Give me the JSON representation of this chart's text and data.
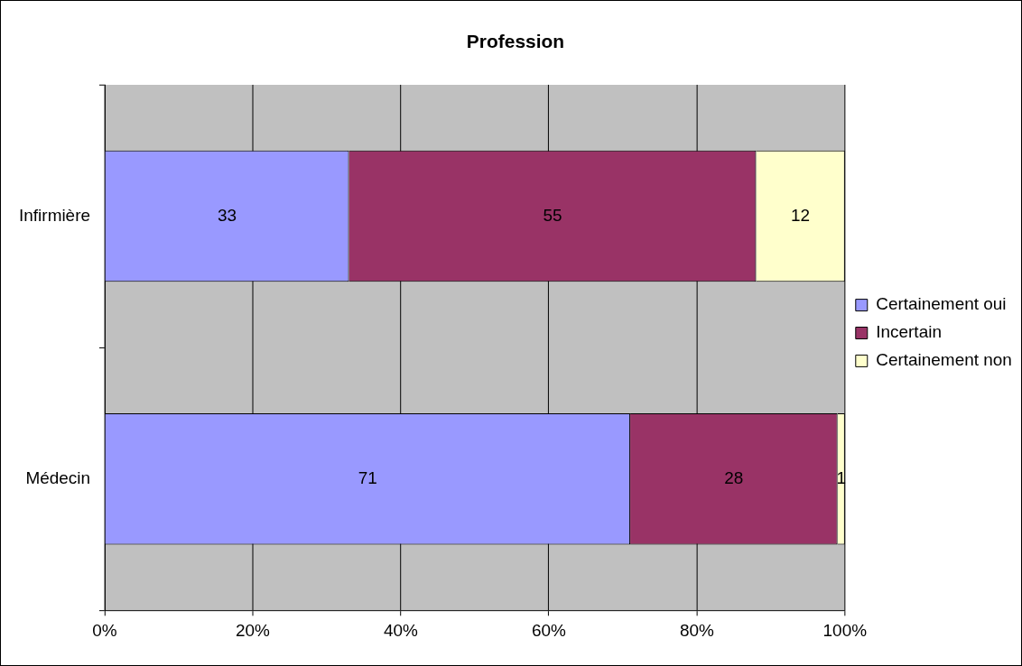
{
  "chart_data": {
    "type": "bar",
    "title": "Profession",
    "orientation": "horizontal",
    "stacked": true,
    "categories": [
      "Infirmière",
      "Médecin"
    ],
    "series": [
      {
        "name": "Certainement oui",
        "color": "#9999ff",
        "values": [
          33,
          71
        ]
      },
      {
        "name": "Incertain",
        "color": "#993366",
        "values": [
          55,
          28
        ]
      },
      {
        "name": "Certainement non",
        "color": "#ffffcc",
        "values": [
          12,
          1
        ]
      }
    ],
    "xlim": [
      0,
      100
    ],
    "xticks": [
      {
        "value": 0,
        "label": "0%"
      },
      {
        "value": 20,
        "label": "20%"
      },
      {
        "value": 40,
        "label": "40%"
      },
      {
        "value": 60,
        "label": "60%"
      },
      {
        "value": 80,
        "label": "80%"
      },
      {
        "value": 100,
        "label": "100%"
      }
    ],
    "grid": "x",
    "legend": "right",
    "data_labels": true
  }
}
